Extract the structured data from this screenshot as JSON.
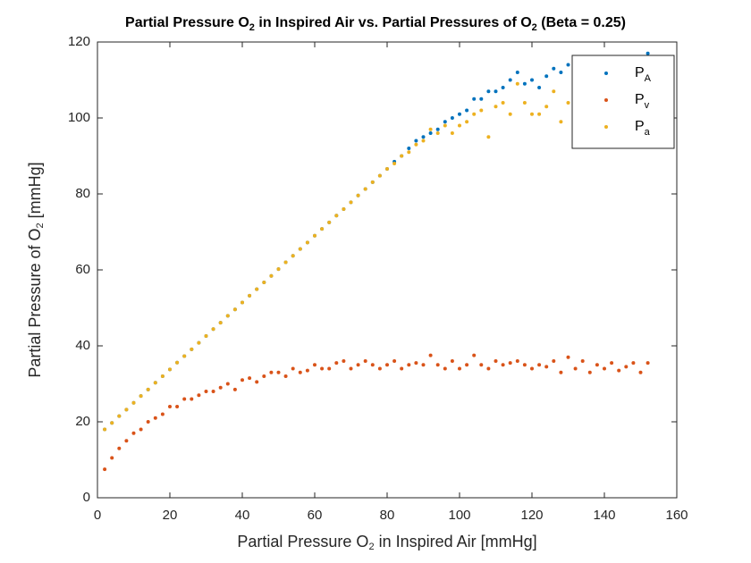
{
  "chart_data": {
    "type": "scatter",
    "title": [
      "Partial Pressure O",
      "2",
      " in Inspired Air vs. Partial Pressures of O",
      "2",
      " (Beta = 0.25)"
    ],
    "xlabel": [
      "Partial Pressure O",
      "2",
      " in Inspired Air [mmHg]"
    ],
    "ylabel": [
      "Partial Pressure of O",
      "2",
      " [mmHg]"
    ],
    "x": [
      2,
      4,
      6,
      8,
      10,
      12,
      14,
      16,
      18,
      20,
      22,
      24,
      26,
      28,
      30,
      32,
      34,
      36,
      38,
      40,
      42,
      44,
      46,
      48,
      50,
      52,
      54,
      56,
      58,
      60,
      62,
      64,
      66,
      68,
      70,
      72,
      74,
      76,
      78,
      80,
      82,
      84,
      86,
      88,
      90,
      92,
      94,
      96,
      98,
      100,
      102,
      104,
      106,
      108,
      110,
      112,
      114,
      116,
      118,
      120,
      122,
      124,
      126,
      128,
      130,
      132,
      134,
      136,
      138,
      140,
      142,
      144,
      146,
      148,
      150,
      152
    ],
    "series": [
      {
        "name": [
          "P",
          "A"
        ],
        "color": "#0072BD",
        "values": [
          18.0,
          19.7,
          21.5,
          23.2,
          25.0,
          26.8,
          28.5,
          30.3,
          32.0,
          33.8,
          35.6,
          37.3,
          39.1,
          40.8,
          42.6,
          44.4,
          46.1,
          47.9,
          49.6,
          51.4,
          53.2,
          54.9,
          56.7,
          58.4,
          60.2,
          62.0,
          63.7,
          65.5,
          67.2,
          69.0,
          70.8,
          72.5,
          74.3,
          76.0,
          77.8,
          79.6,
          81.3,
          83.1,
          84.8,
          86.6,
          88.5,
          90,
          92,
          94,
          95,
          96,
          97,
          99,
          100,
          101,
          102,
          105,
          105,
          107,
          107,
          108,
          110,
          112,
          109,
          110,
          108,
          111,
          113,
          112,
          114,
          110,
          112,
          113,
          112,
          114,
          113,
          115,
          114,
          116,
          115,
          117
        ]
      },
      {
        "name": [
          "P",
          "v"
        ],
        "color": "#D95319",
        "values": [
          7.5,
          10.5,
          13,
          15,
          17,
          18,
          20,
          21,
          22,
          24,
          24,
          26,
          26,
          27,
          28,
          28,
          29,
          30,
          28.5,
          31,
          31.5,
          30.5,
          32,
          33,
          33,
          32,
          34,
          33,
          33.5,
          35,
          34,
          34,
          35.5,
          36,
          34,
          35,
          36,
          35,
          34,
          35,
          36,
          34,
          35,
          35.5,
          35,
          37.5,
          35,
          34,
          36,
          34,
          35,
          37.5,
          35,
          34,
          36,
          35,
          35.5,
          36,
          35,
          34,
          35,
          34.5,
          36,
          33,
          37,
          34,
          36,
          33,
          35,
          34,
          35.5,
          33.5,
          34.5,
          35.5,
          33,
          35.5
        ]
      },
      {
        "name": [
          "P",
          "a"
        ],
        "color": "#EDB120",
        "values": [
          18.0,
          19.7,
          21.5,
          23.2,
          25.0,
          26.8,
          28.5,
          30.3,
          32.0,
          33.8,
          35.6,
          37.3,
          39.1,
          40.8,
          42.6,
          44.4,
          46.1,
          47.9,
          49.6,
          51.4,
          53.2,
          54.9,
          56.7,
          58.4,
          60.2,
          62.0,
          63.7,
          65.5,
          67.2,
          69.0,
          70.8,
          72.5,
          74.3,
          76.0,
          77.8,
          79.6,
          81.3,
          83.1,
          84.8,
          86.6,
          88,
          90,
          91,
          93,
          94,
          97,
          96,
          98,
          96,
          98,
          99,
          101,
          102,
          95,
          103,
          104,
          101,
          109,
          104,
          101,
          101,
          103,
          107,
          99,
          104,
          106,
          108,
          103,
          107,
          104,
          108,
          102,
          106,
          105,
          103,
          107
        ]
      }
    ],
    "xlim": [
      0,
      160
    ],
    "xticks": [
      0,
      20,
      40,
      60,
      80,
      100,
      120,
      140,
      160
    ],
    "ylim": [
      0,
      120
    ],
    "yticks": [
      0,
      20,
      40,
      60,
      80,
      100,
      120
    ],
    "grid": false,
    "legend": "northeast"
  }
}
